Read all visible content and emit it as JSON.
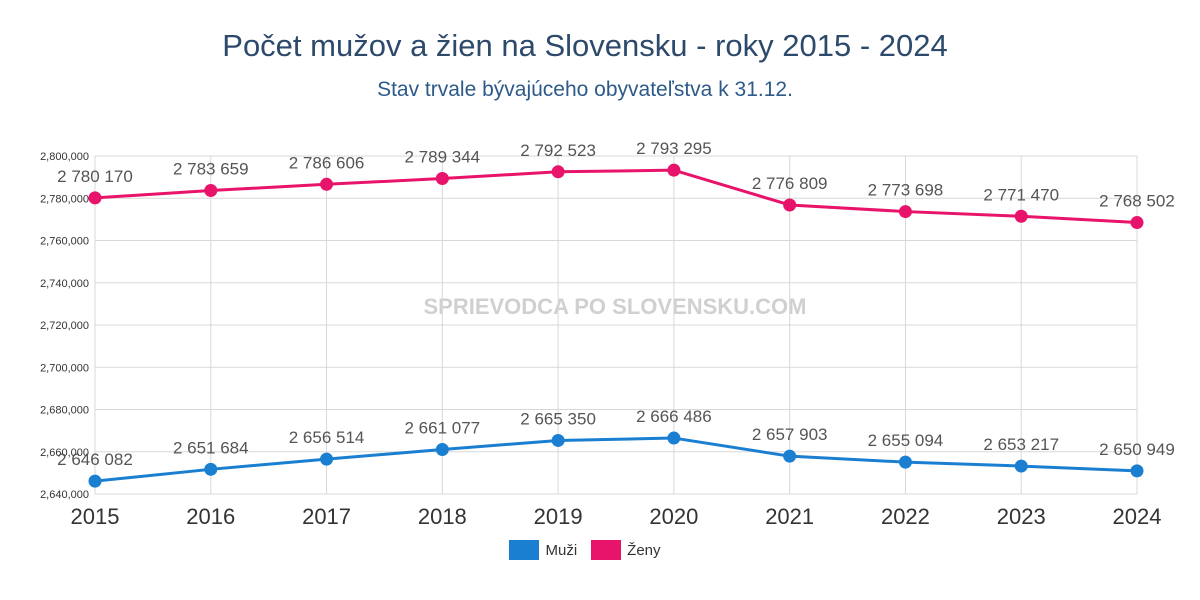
{
  "colors": {
    "muzi": "#1a7fd1",
    "zeny": "#e8136b",
    "grid": "#d8d8d8",
    "axis_text": "#333333",
    "label_text": "#555555",
    "watermark": "#d0d0d0"
  },
  "watermark": "SPRIEVODCA PO SLOVENSKU.COM",
  "chart_data": {
    "type": "line",
    "title": "Počet mužov a žien na Slovensku - roky 2015 - 2024",
    "subtitle": "Stav trvale bývajúceho obyvateľstva k 31.12.",
    "categories": [
      "2015",
      "2016",
      "2017",
      "2018",
      "2019",
      "2020",
      "2021",
      "2022",
      "2023",
      "2024"
    ],
    "ylim": [
      2640000,
      2800000
    ],
    "yticks": [
      2640000,
      2660000,
      2680000,
      2700000,
      2720000,
      2740000,
      2760000,
      2780000,
      2800000
    ],
    "ytick_labels": [
      "2,640,000",
      "2,660,000",
      "2,680,000",
      "2,700,000",
      "2,720,000",
      "2,740,000",
      "2,760,000",
      "2,780,000",
      "2,800,000"
    ],
    "grid": true,
    "legend_position": "bottom-center",
    "series": [
      {
        "name": "Muži",
        "color": "#1a7fd1",
        "values": [
          2646082,
          2651684,
          2656514,
          2661077,
          2665350,
          2666486,
          2657903,
          2655094,
          2653217,
          2650949
        ],
        "labels": [
          "2 646 082",
          "2 651 684",
          "2 656 514",
          "2 661 077",
          "2 665 350",
          "2 666 486",
          "2 657 903",
          "2 655 094",
          "2 653 217",
          "2 650 949"
        ]
      },
      {
        "name": "Ženy",
        "color": "#e8136b",
        "values": [
          2780170,
          2783659,
          2786606,
          2789344,
          2792523,
          2793295,
          2776809,
          2773698,
          2771470,
          2768502
        ],
        "labels": [
          "2 780 170",
          "2 783 659",
          "2 786 606",
          "2 789 344",
          "2 792 523",
          "2 793 295",
          "2 776 809",
          "2 773 698",
          "2 771 470",
          "2 768 502"
        ]
      }
    ]
  }
}
